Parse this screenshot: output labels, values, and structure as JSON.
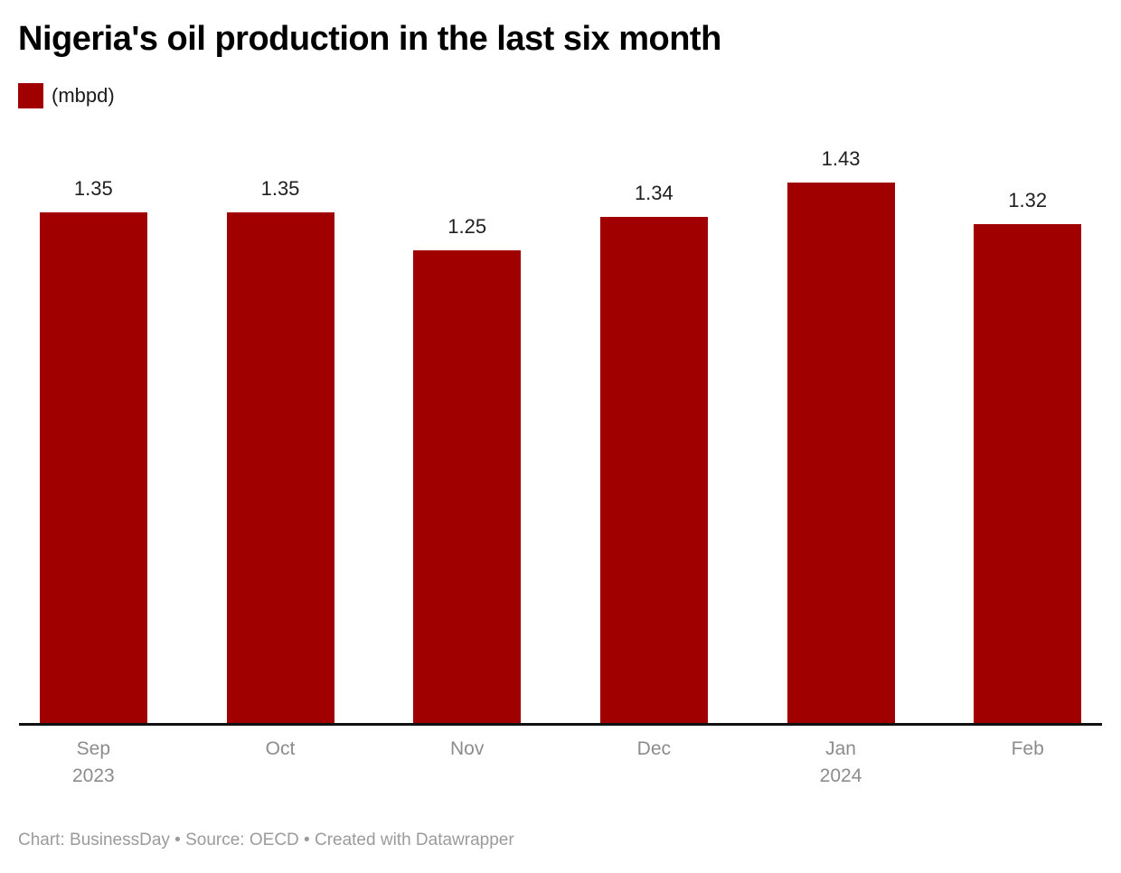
{
  "header": {
    "legend_label": "(mbpd)"
  },
  "footer": {
    "text": "Chart: BusinessDay  • Source: OECD • Created with Datawrapper"
  },
  "chart_data": {
    "type": "bar",
    "title": "Nigeria's oil production in the last six month",
    "legend_label": "(mbpd)",
    "legend_position": "top-left",
    "categories": [
      "Sep 2023",
      "Oct",
      "Nov",
      "Dec",
      "Jan 2024",
      "Feb"
    ],
    "x_tick_lines": [
      [
        "Sep",
        "2023"
      ],
      [
        "Oct"
      ],
      [
        "Nov"
      ],
      [
        "Dec"
      ],
      [
        "Jan",
        "2024"
      ],
      [
        "Feb"
      ]
    ],
    "values": [
      1.35,
      1.35,
      1.25,
      1.34,
      1.43,
      1.32
    ],
    "value_labels": [
      "1.35",
      "1.35",
      "1.25",
      "1.34",
      "1.43",
      "1.32"
    ],
    "xlabel": "",
    "ylabel": "(mbpd)",
    "ylim": [
      0,
      1.43
    ],
    "grid": false,
    "bar_color": "#a00000",
    "axis_color": "#111111",
    "value_label_color": "#1f1f1f",
    "tick_label_color": "#8c8c8c"
  }
}
